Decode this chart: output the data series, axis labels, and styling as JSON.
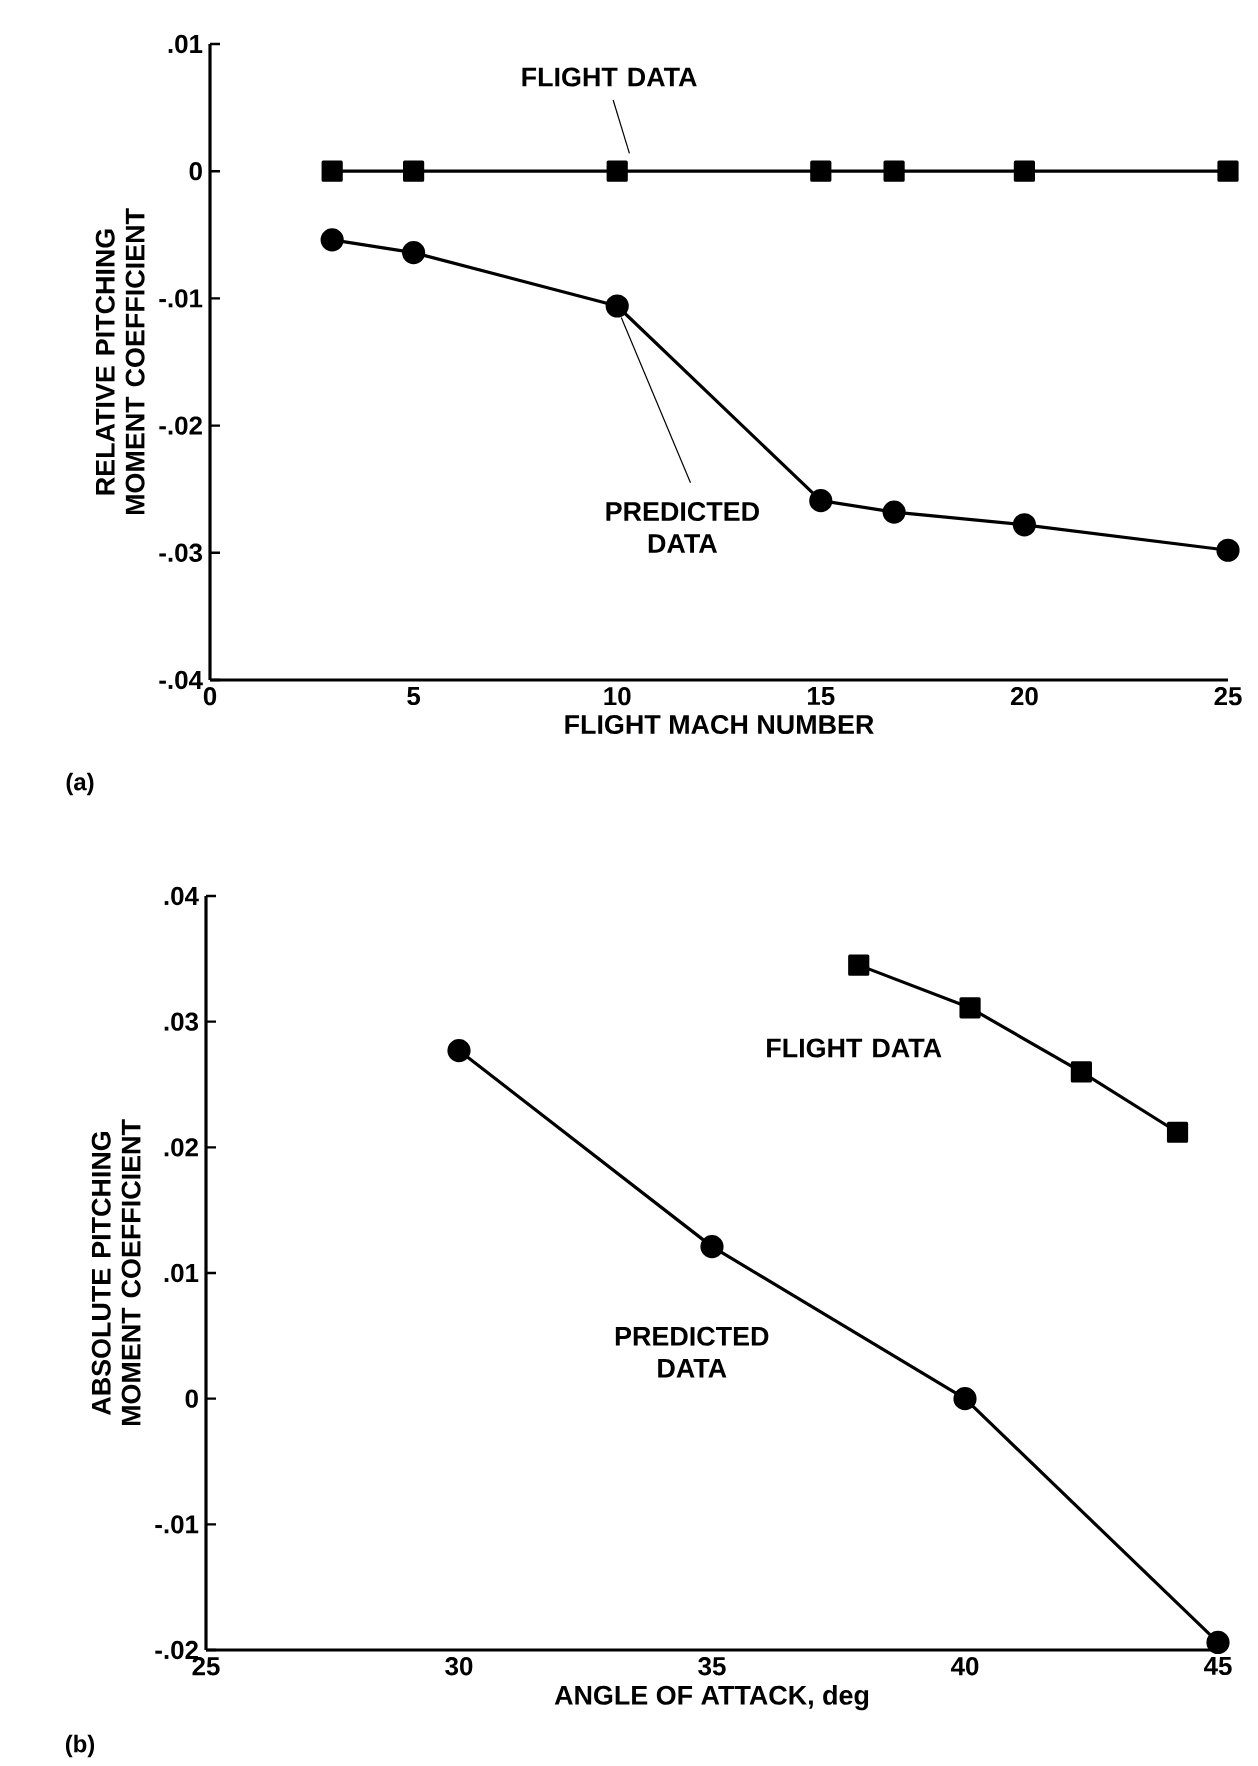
{
  "chart_data": [
    {
      "type": "line",
      "xlabel": "FLIGHT MACH NUMBER",
      "ylabel": "RELATIVE PITCHING MOMENT COEFFICIENT",
      "annotations": [
        "(a)"
      ],
      "line_style": "solid",
      "grid": false,
      "legend": false,
      "xlim": [
        0,
        25
      ],
      "ylim": [
        -0.04,
        0.01
      ],
      "xticks": [
        0,
        5,
        10,
        15,
        20,
        25
      ],
      "yticks": [
        {
          "value": -0.04,
          "label": "-.04"
        },
        {
          "value": -0.03,
          "label": "-.03"
        },
        {
          "value": -0.02,
          "label": "-.02"
        },
        {
          "value": -0.01,
          "label": "-.01"
        },
        {
          "value": 0,
          "label": "0"
        },
        {
          "value": 0.01,
          "label": ".01"
        }
      ],
      "series": [
        {
          "name": "FLIGHT DATA",
          "color": "#000000",
          "marker": "square",
          "x": [
            3,
            5,
            10,
            15,
            16.8,
            20,
            25
          ],
          "values": [
            0,
            0,
            0,
            0,
            0,
            0,
            0
          ]
        },
        {
          "name": "PREDICTED DATA",
          "color": "#000000",
          "marker": "circle",
          "x": [
            3,
            5,
            10,
            15,
            16.8,
            20,
            25
          ],
          "values": [
            -0.0054,
            -0.0064,
            -0.0106,
            -0.0259,
            -0.0268,
            -0.0278,
            -0.0298
          ]
        }
      ]
    },
    {
      "type": "line",
      "xlabel": "ANGLE OF ATTACK, deg",
      "ylabel": "ABSOLUTE PITCHING MOMENT COEFFICIENT",
      "annotations": [
        "(b)"
      ],
      "line_style": "solid",
      "grid": false,
      "legend": false,
      "xlim": [
        25,
        45
      ],
      "ylim": [
        -0.02,
        0.04
      ],
      "xticks": [
        25,
        30,
        35,
        40,
        45
      ],
      "yticks": [
        {
          "value": -0.02,
          "label": "-.02"
        },
        {
          "value": -0.01,
          "label": "-.01"
        },
        {
          "value": 0,
          "label": "0"
        },
        {
          "value": 0.01,
          "label": ".01"
        },
        {
          "value": 0.02,
          "label": ".02"
        },
        {
          "value": 0.03,
          "label": ".03"
        },
        {
          "value": 0.04,
          "label": ".04"
        }
      ],
      "series": [
        {
          "name": "FLIGHT DATA",
          "color": "#000000",
          "marker": "square",
          "x": [
            37.9,
            40.1,
            42.3,
            44.2
          ],
          "values": [
            0.0345,
            0.0311,
            0.026,
            0.0212
          ]
        },
        {
          "name": "PREDICTED DATA",
          "color": "#000000",
          "marker": "circle",
          "x": [
            30,
            35,
            40,
            45
          ],
          "values": [
            0.0277,
            0.0121,
            0,
            -0.0194
          ]
        }
      ]
    }
  ]
}
